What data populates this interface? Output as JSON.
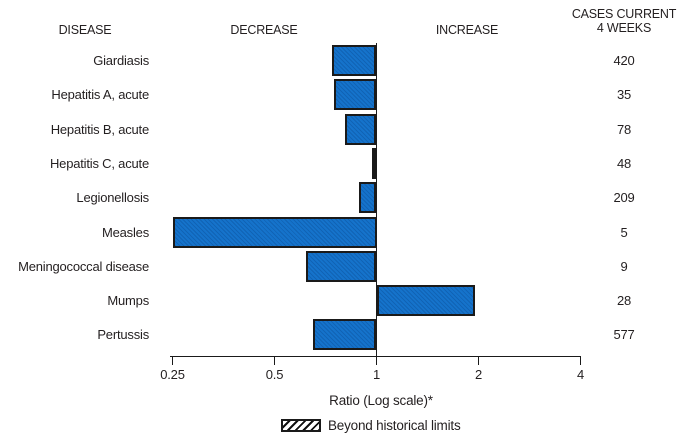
{
  "chart_data": {
    "type": "bar",
    "orientation": "horizontal",
    "scale": "log",
    "baseline": 1,
    "headers": {
      "disease": "DISEASE",
      "decrease": "DECREASE",
      "increase": "INCREASE",
      "cases_line1": "CASES CURRENT",
      "cases_line2": "4 WEEKS"
    },
    "rows": [
      {
        "disease": "Giardiasis",
        "ratio": 0.74,
        "cases": "420",
        "beyond_historical_limits": false
      },
      {
        "disease": "Hepatitis A, acute",
        "ratio": 0.75,
        "cases": "35",
        "beyond_historical_limits": false
      },
      {
        "disease": "Hepatitis B, acute",
        "ratio": 0.81,
        "cases": "78",
        "beyond_historical_limits": false
      },
      {
        "disease": "Hepatitis C, acute",
        "ratio": 0.97,
        "cases": "48",
        "beyond_historical_limits": false
      },
      {
        "disease": "Legionellosis",
        "ratio": 0.89,
        "cases": "209",
        "beyond_historical_limits": false
      },
      {
        "disease": "Measles",
        "ratio": 0.25,
        "cases": "5",
        "beyond_historical_limits": false
      },
      {
        "disease": "Meningococcal disease",
        "ratio": 0.62,
        "cases": "9",
        "beyond_historical_limits": false
      },
      {
        "disease": "Mumps",
        "ratio": 1.95,
        "cases": "28",
        "beyond_historical_limits": false
      },
      {
        "disease": "Pertussis",
        "ratio": 0.65,
        "cases": "577",
        "beyond_historical_limits": false
      }
    ],
    "x_ticks": [
      "0.25",
      "0.5",
      "1",
      "2",
      "4"
    ],
    "x_tick_values": [
      0.25,
      0.5,
      1,
      2,
      4
    ],
    "xlim": [
      0.25,
      4
    ],
    "xlabel": "Ratio (Log scale)*",
    "legend": {
      "label": "Beyond historical limits",
      "swatch": "hatched"
    },
    "grid": false,
    "colors": {
      "bar_fill": "#1573cb",
      "bar_border": "#1a1a1a",
      "axis": "#1a1a1a",
      "text": "#231f20"
    }
  }
}
